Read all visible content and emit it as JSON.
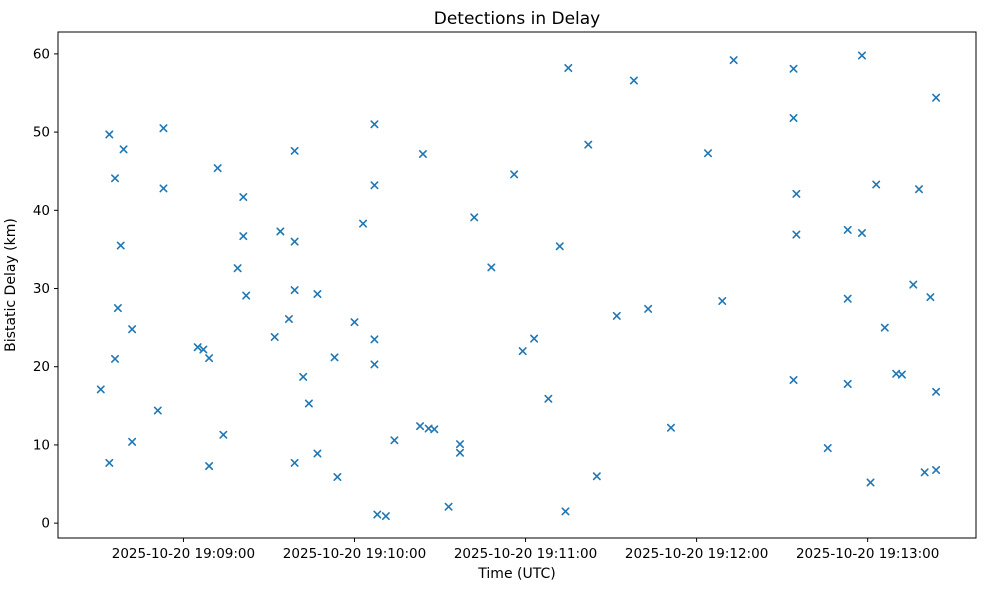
{
  "chart_data": {
    "type": "scatter",
    "title": "Detections in Delay",
    "xlabel": "Time (UTC)",
    "ylabel": "Bistatic Delay (km)",
    "date": "2025-10-20",
    "marker": "x",
    "marker_color": "#1f77b4",
    "axis_color": "#000000",
    "background_color": "#ffffff",
    "grid": false,
    "legend": "none",
    "x_ticks": [
      "2025-10-20 19:09:00",
      "2025-10-20 19:10:00",
      "2025-10-20 19:11:00",
      "2025-10-20 19:12:00",
      "2025-10-20 19:13:00"
    ],
    "y_ticks": [
      0,
      10,
      20,
      30,
      40,
      50,
      60
    ],
    "xlim": [
      "19:08:16",
      "19:13:38"
    ],
    "ylim": [
      -1.9,
      62.8
    ],
    "points": [
      [
        "19:08:31",
        17.1
      ],
      [
        "19:08:34",
        49.7
      ],
      [
        "19:08:34",
        7.7
      ],
      [
        "19:08:36",
        44.1
      ],
      [
        "19:08:36",
        21.0
      ],
      [
        "19:08:37",
        27.5
      ],
      [
        "19:08:38",
        35.5
      ],
      [
        "19:08:39",
        47.8
      ],
      [
        "19:08:42",
        24.8
      ],
      [
        "19:08:42",
        10.4
      ],
      [
        "19:08:51",
        14.4
      ],
      [
        "19:08:53",
        50.5
      ],
      [
        "19:08:53",
        42.8
      ],
      [
        "19:09:05",
        22.5
      ],
      [
        "19:09:07",
        22.2
      ],
      [
        "19:09:09",
        21.1
      ],
      [
        "19:09:09",
        7.3
      ],
      [
        "19:09:12",
        45.4
      ],
      [
        "19:09:14",
        11.3
      ],
      [
        "19:09:19",
        32.6
      ],
      [
        "19:09:21",
        41.7
      ],
      [
        "19:09:21",
        36.7
      ],
      [
        "19:09:22",
        29.1
      ],
      [
        "19:09:32",
        23.8
      ],
      [
        "19:09:34",
        37.3
      ],
      [
        "19:09:37",
        26.1
      ],
      [
        "19:09:39",
        47.6
      ],
      [
        "19:09:39",
        36.0
      ],
      [
        "19:09:39",
        29.8
      ],
      [
        "19:09:39",
        7.7
      ],
      [
        "19:09:42",
        18.7
      ],
      [
        "19:09:44",
        15.3
      ],
      [
        "19:09:47",
        29.3
      ],
      [
        "19:09:47",
        8.9
      ],
      [
        "19:09:53",
        21.2
      ],
      [
        "19:09:54",
        5.9
      ],
      [
        "19:10:00",
        25.7
      ],
      [
        "19:10:03",
        38.3
      ],
      [
        "19:10:07",
        51.0
      ],
      [
        "19:10:07",
        43.2
      ],
      [
        "19:10:07",
        23.5
      ],
      [
        "19:10:07",
        20.3
      ],
      [
        "19:10:08",
        1.1
      ],
      [
        "19:10:11",
        0.9
      ],
      [
        "19:10:14",
        10.6
      ],
      [
        "19:10:23",
        12.4
      ],
      [
        "19:10:24",
        47.2
      ],
      [
        "19:10:26",
        12.1
      ],
      [
        "19:10:28",
        12.0
      ],
      [
        "19:10:33",
        2.1
      ],
      [
        "19:10:37",
        10.1
      ],
      [
        "19:10:37",
        9.0
      ],
      [
        "19:10:42",
        39.1
      ],
      [
        "19:10:48",
        32.7
      ],
      [
        "19:10:56",
        44.6
      ],
      [
        "19:10:59",
        22.0
      ],
      [
        "19:11:03",
        23.6
      ],
      [
        "19:11:08",
        15.9
      ],
      [
        "19:11:12",
        35.4
      ],
      [
        "19:11:14",
        1.5
      ],
      [
        "19:11:15",
        58.2
      ],
      [
        "19:11:22",
        48.4
      ],
      [
        "19:11:25",
        6.0
      ],
      [
        "19:11:32",
        26.5
      ],
      [
        "19:11:38",
        56.6
      ],
      [
        "19:11:43",
        27.4
      ],
      [
        "19:11:51",
        12.2
      ],
      [
        "19:12:04",
        47.3
      ],
      [
        "19:12:09",
        28.4
      ],
      [
        "19:12:13",
        59.2
      ],
      [
        "19:12:34",
        58.1
      ],
      [
        "19:12:34",
        51.8
      ],
      [
        "19:12:34",
        18.3
      ],
      [
        "19:12:35",
        42.1
      ],
      [
        "19:12:35",
        36.9
      ],
      [
        "19:12:46",
        9.6
      ],
      [
        "19:12:53",
        37.5
      ],
      [
        "19:12:53",
        28.7
      ],
      [
        "19:12:53",
        17.8
      ],
      [
        "19:12:58",
        59.8
      ],
      [
        "19:12:58",
        37.1
      ],
      [
        "19:13:01",
        5.2
      ],
      [
        "19:13:03",
        43.3
      ],
      [
        "19:13:06",
        25.0
      ],
      [
        "19:13:10",
        19.1
      ],
      [
        "19:13:12",
        19.0
      ],
      [
        "19:13:16",
        30.5
      ],
      [
        "19:13:18",
        42.7
      ],
      [
        "19:13:20",
        6.5
      ],
      [
        "19:13:22",
        28.9
      ],
      [
        "19:13:24",
        54.4
      ],
      [
        "19:13:24",
        16.8
      ],
      [
        "19:13:24",
        6.8
      ]
    ]
  }
}
